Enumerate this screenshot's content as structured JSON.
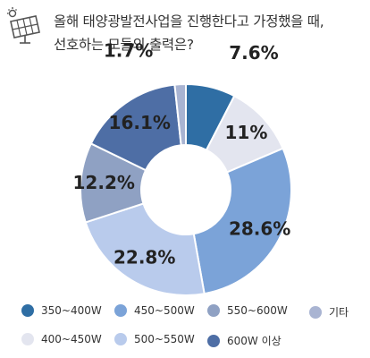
{
  "header": {
    "title_line1": "올해 태양광발전사업을 진행한다고 가정했을 때,",
    "title_line2": "선호하는 모듈의 출력은?"
  },
  "chart_data": {
    "type": "pie",
    "categories": [
      "350~400W",
      "400~450W",
      "450~500W",
      "500~550W",
      "550~600W",
      "600W 이상",
      "기타"
    ],
    "values": [
      7.6,
      11,
      28.6,
      22.8,
      12.2,
      16.1,
      1.7
    ],
    "labels": [
      "7.6%",
      "11%",
      "28.6%",
      "22.8%",
      "12.2%",
      "16.1%",
      "1.7%"
    ],
    "colors": [
      "#2f6ea4",
      "#e3e5ef",
      "#7ba3d8",
      "#b9cbec",
      "#8fa1c3",
      "#4e6ea5",
      "#a9b4d2"
    ]
  },
  "legend": {
    "items": [
      {
        "label": "350~400W",
        "color": "#2f6ea4"
      },
      {
        "label": "450~500W",
        "color": "#7ba3d8"
      },
      {
        "label": "550~600W",
        "color": "#8fa1c3"
      },
      {
        "label": "기타",
        "color": "#a9b4d2"
      },
      {
        "label": "400~450W",
        "color": "#e3e5ef"
      },
      {
        "label": "500~550W",
        "color": "#b9cbec"
      },
      {
        "label": "600W 이상",
        "color": "#4e6ea5"
      }
    ]
  }
}
